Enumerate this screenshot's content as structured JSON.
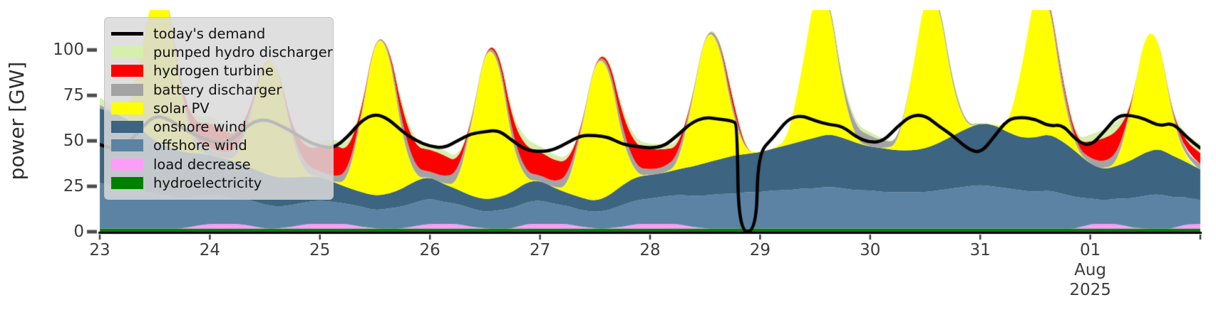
{
  "y_axis": {
    "label": "power [GW]",
    "ticks": [
      "0",
      "25",
      "50",
      "75",
      "100"
    ],
    "tick_values": [
      0,
      25,
      50,
      75,
      100
    ],
    "max": 122,
    "text_color": "#3d3d3d"
  },
  "x_axis": {
    "tick_labels": [
      "23",
      "24",
      "25",
      "26",
      "27",
      "28",
      "29",
      "30",
      "31",
      "01"
    ],
    "month_label": "Aug",
    "year_label": "2025",
    "num_ticks": 11,
    "text_color": "#3d3d3d"
  },
  "legend": {
    "items": [
      {
        "label": "today's demand",
        "color": "#000000",
        "type": "line"
      },
      {
        "label": "pumped hydro discharger",
        "color": "#d6efad",
        "type": "patch"
      },
      {
        "label": "hydrogen turbine",
        "color": "#ff0000",
        "type": "patch"
      },
      {
        "label": "battery discharger",
        "color": "#a3a3a3",
        "type": "patch"
      },
      {
        "label": "solar PV",
        "color": "#ffff00",
        "type": "patch"
      },
      {
        "label": "onshore wind",
        "color": "#3d6480",
        "type": "patch"
      },
      {
        "label": "offshore wind",
        "color": "#5c83a3",
        "type": "patch"
      },
      {
        "label": "load decrease",
        "color": "#fc9df8",
        "type": "patch"
      },
      {
        "label": "hydroelectricity",
        "color": "#008000",
        "type": "patch"
      }
    ]
  },
  "chart_data": {
    "type": "area",
    "stacked": true,
    "x_start_label": "23 Jul 2025 00:00",
    "x_end_label": "02 Aug 2025 00:00",
    "x_step_hours": 3,
    "x_total_hours": 240,
    "ylim": [
      0,
      122
    ],
    "grid": false,
    "legend_position": "upper-left",
    "series": [
      {
        "name": "hydroelectricity",
        "color": "#008000",
        "constant": 1.8
      },
      {
        "name": "load decrease",
        "color": "#fc9df8",
        "values": [
          0,
          0,
          0,
          0,
          0,
          0,
          0,
          1.5,
          2.5,
          2.5,
          2.5,
          1.5,
          0,
          0,
          1,
          2.5,
          2.5,
          2.5,
          2.5,
          1,
          0,
          0,
          0,
          1.5,
          2.5,
          2.5,
          2.5,
          1,
          0,
          0,
          0,
          2.5,
          2.5,
          2.5,
          2.5,
          1,
          0,
          0,
          1,
          2.5,
          2.5,
          2.5,
          2.5,
          1,
          0,
          0,
          0,
          0,
          0,
          0,
          0,
          0,
          0,
          0,
          0,
          0,
          0,
          0,
          0,
          0,
          0,
          0,
          0,
          0,
          0,
          0,
          0,
          0,
          0,
          0,
          0,
          0,
          2.5,
          2.5,
          2.5,
          0.5,
          0,
          0,
          0,
          2.5,
          2.5
        ]
      },
      {
        "name": "offshore wind",
        "color": "#5c83a3",
        "values": [
          25,
          24,
          23,
          21,
          19,
          18,
          17,
          16,
          16,
          15,
          14,
          14,
          13,
          12,
          12,
          12,
          13,
          12,
          11,
          11,
          10,
          11,
          12,
          13,
          14,
          12,
          11,
          10,
          9,
          10,
          11,
          12,
          13,
          11,
          10,
          9,
          9,
          10,
          12,
          13,
          14,
          15,
          16,
          17,
          18,
          19,
          19,
          20,
          20,
          21,
          21,
          22,
          22,
          23,
          22,
          21,
          21,
          20,
          20,
          20,
          20,
          21,
          22,
          23,
          24,
          23,
          22,
          21,
          20,
          21,
          19,
          17,
          14,
          13,
          14,
          16,
          18,
          19,
          17,
          15,
          13
        ]
      },
      {
        "name": "onshore wind",
        "color": "#3d6480",
        "values": [
          41,
          40,
          37,
          34,
          29,
          27,
          25,
          24,
          22,
          21,
          20,
          18,
          17,
          16,
          15,
          14,
          13,
          11,
          9,
          8,
          8,
          8,
          10,
          12,
          12,
          10,
          8,
          7,
          7,
          7,
          9,
          11,
          11,
          9,
          7,
          7,
          6,
          8,
          11,
          13,
          13,
          13,
          14,
          16,
          18,
          19,
          21,
          21,
          22,
          23,
          25,
          26,
          28,
          29,
          28,
          26,
          24,
          24,
          23,
          23,
          24,
          26,
          29,
          32,
          34,
          34,
          31,
          29,
          30,
          31,
          29,
          25,
          19,
          17,
          18,
          21,
          24,
          25,
          23,
          19,
          17
        ]
      },
      {
        "name": "solar PV",
        "color": "#ffff00",
        "values": [
          0,
          0,
          3,
          40,
          88,
          81,
          27,
          1,
          0,
          0,
          2,
          29,
          65,
          60,
          20,
          1,
          0,
          0,
          3,
          40,
          88,
          81,
          27,
          1,
          0,
          0,
          3,
          38,
          84,
          77,
          25,
          1,
          0,
          0,
          3,
          36,
          79,
          72,
          24,
          1,
          0,
          0,
          2,
          33,
          73,
          66,
          22,
          1,
          0,
          0,
          3,
          37,
          82,
          75,
          25,
          1,
          0,
          0,
          3,
          39,
          86,
          78,
          26,
          1,
          0,
          0,
          3,
          37,
          82,
          75,
          25,
          1,
          0,
          0,
          2,
          30,
          67,
          61,
          20,
          1,
          0
        ]
      },
      {
        "name": "battery discharger",
        "color": "#a3a3a3",
        "values": [
          2,
          0,
          0,
          0,
          0,
          0,
          3,
          5,
          4,
          3,
          5,
          3,
          0,
          0,
          3,
          5,
          3,
          3,
          5,
          2,
          0,
          2,
          7,
          5,
          3,
          4,
          6,
          2,
          0,
          3,
          6,
          4,
          3,
          3,
          6,
          2,
          0,
          3,
          6,
          4,
          3,
          3,
          5,
          2,
          0,
          3,
          4,
          0,
          0,
          0,
          0,
          0,
          0,
          2,
          4,
          7,
          6,
          4,
          2,
          0,
          0,
          2,
          3,
          1,
          0,
          0,
          0,
          0,
          0,
          2,
          6,
          2,
          3,
          4,
          5,
          0,
          0,
          0,
          2,
          4,
          3
        ]
      },
      {
        "name": "hydrogen turbine",
        "color": "#ff0000",
        "values": [
          0,
          0,
          0,
          0,
          0,
          0,
          2,
          10,
          14,
          12,
          8,
          2,
          0,
          0,
          4,
          10,
          13,
          18,
          12,
          2,
          0,
          0,
          8,
          12,
          12,
          12,
          6,
          0,
          0,
          2,
          8,
          14,
          13,
          12,
          8,
          0,
          0,
          2,
          8,
          12,
          11,
          10,
          5,
          0,
          0,
          0,
          5,
          0,
          0,
          0,
          0,
          0,
          0,
          0,
          0,
          0,
          0,
          0,
          0,
          0,
          0,
          0,
          0,
          0,
          0,
          0,
          0,
          0,
          0,
          1,
          2,
          3,
          9,
          13,
          12,
          0,
          0,
          0,
          0,
          6,
          6
        ]
      },
      {
        "name": "pumped hydro discharger",
        "color": "#d6efad",
        "values": [
          4,
          3,
          0,
          0,
          0,
          0,
          1,
          3,
          4,
          3,
          2,
          0,
          0,
          0,
          1,
          3,
          3,
          3,
          3,
          1,
          0,
          0,
          3,
          3,
          3,
          3,
          2,
          0,
          0,
          1,
          3,
          4,
          3,
          3,
          2,
          0,
          0,
          1,
          3,
          3,
          3,
          3,
          2,
          0,
          0,
          1,
          2,
          0,
          0,
          0,
          0,
          0,
          0,
          1,
          2,
          2,
          2,
          1,
          0,
          0,
          0,
          0,
          1,
          0,
          0,
          0,
          0,
          0,
          0,
          1,
          2,
          1,
          4,
          5,
          5,
          0,
          0,
          0,
          0,
          4,
          5
        ]
      }
    ],
    "demand_line": {
      "name": "today's demand",
      "color": "#000000",
      "width": 4.5,
      "points_hour_gw": [
        [
          0,
          48
        ],
        [
          3,
          45
        ],
        [
          6,
          48
        ],
        [
          9,
          57
        ],
        [
          12,
          64
        ],
        [
          15,
          62
        ],
        [
          18,
          57
        ],
        [
          21,
          53
        ],
        [
          24,
          50
        ],
        [
          27,
          48
        ],
        [
          30,
          53
        ],
        [
          33,
          60
        ],
        [
          36,
          62
        ],
        [
          39,
          59
        ],
        [
          42,
          55
        ],
        [
          45,
          50
        ],
        [
          48,
          47
        ],
        [
          51,
          46
        ],
        [
          54,
          52
        ],
        [
          57,
          61
        ],
        [
          60,
          65
        ],
        [
          63,
          62
        ],
        [
          66,
          55
        ],
        [
          69,
          50
        ],
        [
          72,
          47
        ],
        [
          75,
          46
        ],
        [
          78,
          50
        ],
        [
          81,
          54
        ],
        [
          84,
          55
        ],
        [
          87,
          56
        ],
        [
          90,
          50
        ],
        [
          93,
          45
        ],
        [
          96,
          44
        ],
        [
          99,
          45
        ],
        [
          102,
          49
        ],
        [
          105,
          53
        ],
        [
          108,
          53
        ],
        [
          111,
          52
        ],
        [
          114,
          48
        ],
        [
          117,
          47
        ],
        [
          120,
          46
        ],
        [
          123,
          47
        ],
        [
          126,
          53
        ],
        [
          129,
          60
        ],
        [
          132,
          63
        ],
        [
          135,
          62
        ],
        [
          138,
          61
        ],
        [
          139,
          59
        ],
        [
          139.3,
          0
        ],
        [
          143.2,
          0
        ],
        [
          143.5,
          43
        ],
        [
          147,
          52
        ],
        [
          150,
          62
        ],
        [
          153,
          64
        ],
        [
          156,
          61
        ],
        [
          159,
          59
        ],
        [
          162,
          58
        ],
        [
          165,
          52
        ],
        [
          168,
          49
        ],
        [
          171,
          50
        ],
        [
          174,
          58
        ],
        [
          177,
          64
        ],
        [
          180,
          64
        ],
        [
          183,
          58
        ],
        [
          186,
          53
        ],
        [
          189,
          46
        ],
        [
          192,
          43
        ],
        [
          195,
          52
        ],
        [
          198,
          62
        ],
        [
          201,
          63
        ],
        [
          204,
          62
        ],
        [
          207,
          58
        ],
        [
          210,
          59
        ],
        [
          213,
          50
        ],
        [
          216,
          47
        ],
        [
          219,
          55
        ],
        [
          222,
          64
        ],
        [
          225,
          64
        ],
        [
          228,
          62
        ],
        [
          231,
          58
        ],
        [
          234,
          60
        ],
        [
          237,
          52
        ],
        [
          240,
          46
        ]
      ]
    }
  }
}
